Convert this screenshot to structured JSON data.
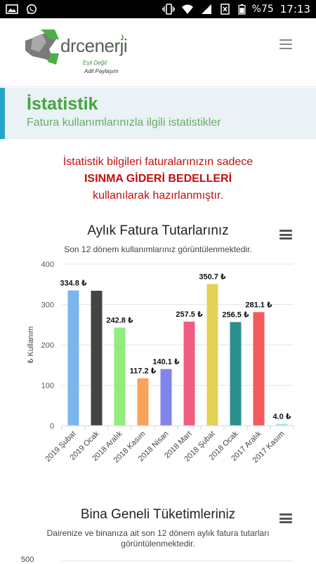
{
  "status_bar": {
    "battery": "%75",
    "time": "17:13",
    "left_icons": [
      "image-icon",
      "whatsapp-icon"
    ],
    "right_icons": [
      "cast-icon",
      "vibrate-icon",
      "wifi-icon",
      "cellular-icon",
      "no-sim-icon",
      "battery-icon"
    ]
  },
  "header": {
    "logo_text": "drcenerji",
    "logo_tagline_1": "Eşit Değil",
    "logo_tagline_2": "Adil Paylaşım",
    "menu_icon": "hamburger-icon"
  },
  "banner": {
    "title": "İstatistik",
    "subtitle": "Fatura kullanımlarınızla ilgili istatistikler"
  },
  "notice": {
    "line1": "İstatistik bilgileri faturalarınızın sadece",
    "line2": "ISINMA GİDERİ BEDELLERİ",
    "line3": "kullanılarak hazırlanmıştır."
  },
  "chart1": {
    "title": "Aylık Fatura Tutarlarınız",
    "subtitle": "Son 12 dönem kullanımlarınız görüntülenmektedir.",
    "menu_icon": "chart-menu-icon"
  },
  "chart2": {
    "title": "Bina Geneli Tüketimleriniz",
    "subtitle": "Dairenize ve binanıza ait son 12 dönem aylık fatura tutarları görüntülenmektedir.",
    "menu_icon": "chart-menu-icon",
    "visible_tick": "500"
  },
  "chart_data": [
    {
      "type": "bar",
      "title": "Aylık Fatura Tutarlarınız",
      "subtitle": "Son 12 dönem kullanımlarınız görüntülenmektedir.",
      "ylabel": "₺ Kullanım",
      "ylim": [
        0,
        400
      ],
      "yticks": [
        0,
        100,
        200,
        300,
        400
      ],
      "grid": true,
      "categories": [
        "2019 Şubat",
        "2019 Ocak",
        "2018 Aralık",
        "2018 Kasım",
        "2018 Nisan",
        "2018 Mart",
        "2018 Şubat",
        "2018 Ocak",
        "2017 Aralık",
        "2017 Kasım"
      ],
      "values": [
        334.8,
        334,
        242.8,
        117.2,
        140.1,
        257.5,
        350.7,
        256.5,
        281.1,
        4.0
      ],
      "data_labels": [
        "334.8 ₺",
        "",
        "242.8 ₺",
        "117.2 ₺",
        "140.1 ₺",
        "257.5 ₺",
        "350.7 ₺",
        "256.5 ₺",
        "281.1 ₺",
        "4.0 ₺"
      ],
      "colors": [
        "#7cb5ec",
        "#434348",
        "#90ed7d",
        "#f7a35c",
        "#8085e9",
        "#f15c80",
        "#e4d354",
        "#2b908f",
        "#f45b5b",
        "#91e8e1"
      ]
    }
  ]
}
